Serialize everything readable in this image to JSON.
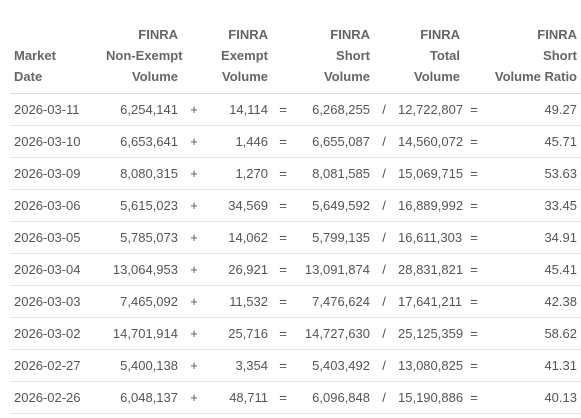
{
  "table": {
    "headers": {
      "date": [
        "Market",
        "Date"
      ],
      "non_exempt": [
        "FINRA",
        "Non-Exempt",
        "Volume"
      ],
      "exempt": [
        "FINRA",
        "Exempt",
        "Volume"
      ],
      "short": [
        "FINRA",
        "Short",
        "Volume"
      ],
      "total": [
        "FINRA",
        "Total",
        "Volume"
      ],
      "ratio": [
        "FINRA",
        "Short",
        "Volume Ratio"
      ]
    },
    "operators": {
      "plus": "+",
      "equals": "=",
      "divide": "/",
      "equals2": "="
    },
    "rows": [
      {
        "date": "2026-03-11",
        "non_exempt": "6,254,141",
        "exempt": "14,114",
        "short": "6,268,255",
        "total": "12,722,807",
        "ratio": "49.27"
      },
      {
        "date": "2026-03-10",
        "non_exempt": "6,653,641",
        "exempt": "1,446",
        "short": "6,655,087",
        "total": "14,560,072",
        "ratio": "45.71"
      },
      {
        "date": "2026-03-09",
        "non_exempt": "8,080,315",
        "exempt": "1,270",
        "short": "8,081,585",
        "total": "15,069,715",
        "ratio": "53.63"
      },
      {
        "date": "2026-03-06",
        "non_exempt": "5,615,023",
        "exempt": "34,569",
        "short": "5,649,592",
        "total": "16,889,992",
        "ratio": "33.45"
      },
      {
        "date": "2026-03-05",
        "non_exempt": "5,785,073",
        "exempt": "14,062",
        "short": "5,799,135",
        "total": "16,611,303",
        "ratio": "34.91"
      },
      {
        "date": "2026-03-04",
        "non_exempt": "13,064,953",
        "exempt": "26,921",
        "short": "13,091,874",
        "total": "28,831,821",
        "ratio": "45.41"
      },
      {
        "date": "2026-03-03",
        "non_exempt": "7,465,092",
        "exempt": "11,532",
        "short": "7,476,624",
        "total": "17,641,211",
        "ratio": "42.38"
      },
      {
        "date": "2026-03-02",
        "non_exempt": "14,701,914",
        "exempt": "25,716",
        "short": "14,727,630",
        "total": "25,125,359",
        "ratio": "58.62"
      },
      {
        "date": "2026-02-27",
        "non_exempt": "5,400,138",
        "exempt": "3,354",
        "short": "5,403,492",
        "total": "13,080,825",
        "ratio": "41.31"
      },
      {
        "date": "2026-02-26",
        "non_exempt": "6,048,137",
        "exempt": "48,711",
        "short": "6,096,848",
        "total": "15,190,886",
        "ratio": "40.13"
      }
    ]
  }
}
